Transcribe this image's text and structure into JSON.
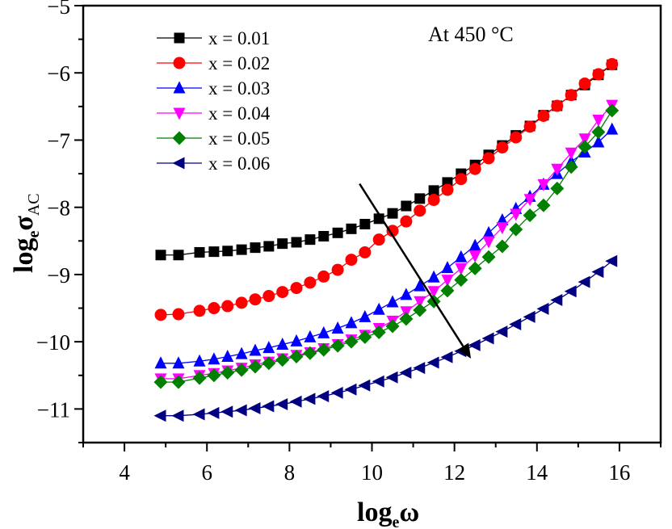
{
  "chart_data": {
    "type": "line",
    "title": "",
    "annotation": "At 450 °C",
    "xlabel": {
      "main": "log",
      "sub": "e",
      "symbol": "ω"
    },
    "ylabel": {
      "main": "log",
      "sub": "e",
      "symbol": "σ",
      "symbol_sub": "AC"
    },
    "xlim": [
      3,
      17
    ],
    "ylim": [
      -11.5,
      -5
    ],
    "xticks": [
      4,
      6,
      8,
      10,
      12,
      14,
      16
    ],
    "xtick_labels": [
      "4",
      "6",
      "8",
      "10",
      "12",
      "14",
      "16"
    ],
    "yticks": [
      -5,
      -6,
      -7,
      -8,
      -9,
      -10,
      -11
    ],
    "ytick_labels": [
      "−5",
      "−6",
      "−7",
      "−8",
      "−9",
      "−10",
      "−11"
    ],
    "legend_position": "top-left",
    "arrow": {
      "from": [
        9.7,
        -7.65
      ],
      "to": [
        12.4,
        -10.25
      ],
      "meaning": "decreasing conductivity with increasing x"
    },
    "x": [
      4.88,
      5.31,
      5.82,
      6.17,
      6.5,
      6.84,
      7.17,
      7.5,
      7.83,
      8.17,
      8.5,
      8.83,
      9.17,
      9.5,
      9.83,
      10.17,
      10.5,
      10.83,
      11.16,
      11.5,
      11.83,
      12.16,
      12.5,
      12.83,
      13.16,
      13.49,
      13.83,
      14.16,
      14.49,
      14.83,
      15.16,
      15.49,
      15.82
    ],
    "series": [
      {
        "name": "x = 0.01",
        "color": "#000000",
        "marker": "square",
        "values": [
          -8.71,
          -8.71,
          -8.67,
          -8.66,
          -8.65,
          -8.63,
          -8.6,
          -8.58,
          -8.54,
          -8.52,
          -8.48,
          -8.43,
          -8.38,
          -8.32,
          -8.25,
          -8.17,
          -8.09,
          -7.98,
          -7.87,
          -7.75,
          -7.63,
          -7.5,
          -7.37,
          -7.22,
          -7.08,
          -6.93,
          -6.79,
          -6.63,
          -6.49,
          -6.33,
          -6.18,
          -6.03,
          -5.88
        ]
      },
      {
        "name": "x = 0.02",
        "color": "#ff0000",
        "marker": "circle",
        "values": [
          -9.6,
          -9.59,
          -9.54,
          -9.5,
          -9.47,
          -9.42,
          -9.37,
          -9.32,
          -9.26,
          -9.2,
          -9.12,
          -9.03,
          -8.93,
          -8.78,
          -8.67,
          -8.48,
          -8.35,
          -8.21,
          -8.05,
          -7.89,
          -7.74,
          -7.58,
          -7.43,
          -7.27,
          -7.11,
          -6.96,
          -6.8,
          -6.64,
          -6.49,
          -6.33,
          -6.16,
          -6.02,
          -5.87
        ]
      },
      {
        "name": "x = 0.03",
        "color": "#0000ff",
        "marker": "triangle-up",
        "values": [
          -10.32,
          -10.32,
          -10.29,
          -10.26,
          -10.22,
          -10.18,
          -10.13,
          -10.09,
          -10.04,
          -9.99,
          -9.93,
          -9.87,
          -9.8,
          -9.72,
          -9.63,
          -9.52,
          -9.41,
          -9.3,
          -9.17,
          -9.04,
          -8.9,
          -8.74,
          -8.57,
          -8.38,
          -8.19,
          -8.02,
          -7.84,
          -7.66,
          -7.5,
          -7.32,
          -7.18,
          -7.03,
          -6.84
        ]
      },
      {
        "name": "x = 0.04",
        "color": "#ff00ff",
        "marker": "triangle-down",
        "values": [
          -10.55,
          -10.55,
          -10.5,
          -10.47,
          -10.43,
          -10.39,
          -10.34,
          -10.3,
          -10.25,
          -10.2,
          -10.16,
          -10.1,
          -10.04,
          -9.97,
          -9.9,
          -9.8,
          -9.69,
          -9.55,
          -9.4,
          -9.25,
          -9.08,
          -8.91,
          -8.72,
          -8.51,
          -8.3,
          -8.1,
          -7.88,
          -7.66,
          -7.43,
          -7.19,
          -6.98,
          -6.7,
          -6.48
        ]
      },
      {
        "name": "x = 0.05",
        "color": "#007f00",
        "marker": "diamond",
        "values": [
          -10.6,
          -10.6,
          -10.54,
          -10.5,
          -10.46,
          -10.42,
          -10.37,
          -10.32,
          -10.27,
          -10.22,
          -10.17,
          -10.12,
          -10.06,
          -10.0,
          -9.93,
          -9.86,
          -9.77,
          -9.66,
          -9.53,
          -9.4,
          -9.24,
          -9.08,
          -8.91,
          -8.74,
          -8.58,
          -8.33,
          -8.12,
          -7.97,
          -7.72,
          -7.4,
          -7.1,
          -6.88,
          -6.56
        ]
      },
      {
        "name": "x = 0.06",
        "color": "#000080",
        "marker": "triangle-left",
        "values": [
          -11.1,
          -11.1,
          -11.08,
          -11.06,
          -11.04,
          -11.02,
          -10.99,
          -10.96,
          -10.93,
          -10.89,
          -10.85,
          -10.81,
          -10.76,
          -10.71,
          -10.65,
          -10.59,
          -10.53,
          -10.46,
          -10.39,
          -10.31,
          -10.23,
          -10.14,
          -10.05,
          -9.95,
          -9.85,
          -9.74,
          -9.63,
          -9.51,
          -9.38,
          -9.25,
          -9.11,
          -8.96,
          -8.8
        ]
      }
    ]
  }
}
